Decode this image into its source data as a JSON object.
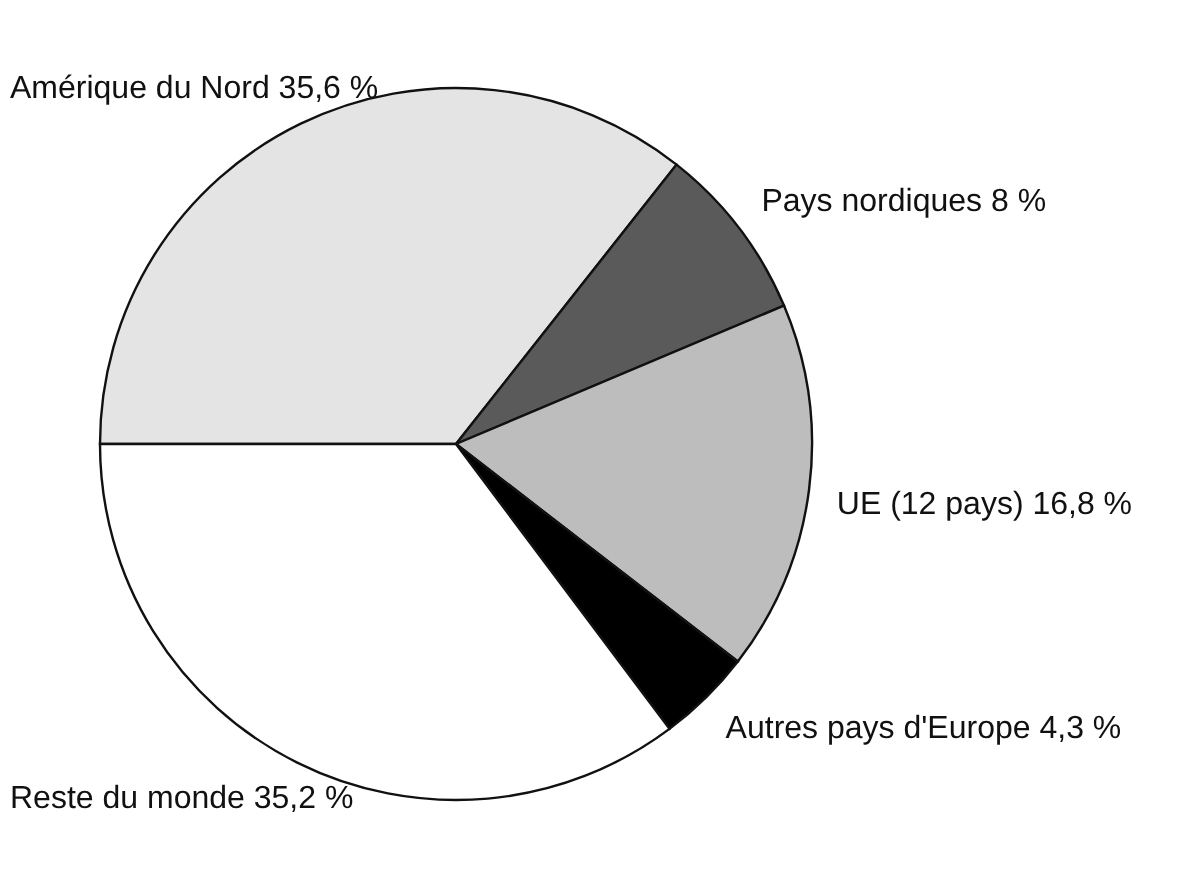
{
  "chart_data": {
    "type": "pie",
    "categories": [
      "Amérique du Nord",
      "Pays nordiques",
      "UE (12 pays)",
      "Autres pays d'Europe",
      "Reste du monde"
    ],
    "values": [
      35.6,
      8,
      16.8,
      4.3,
      35.2
    ],
    "value_labels": [
      "35,6 %",
      "8 %",
      "16,8 %",
      "4,3 %",
      "35,2 %"
    ],
    "colors": [
      "#e4e4e4",
      "#5a5a5a",
      "#bdbdbd",
      "#000000",
      "#ffffff"
    ]
  }
}
